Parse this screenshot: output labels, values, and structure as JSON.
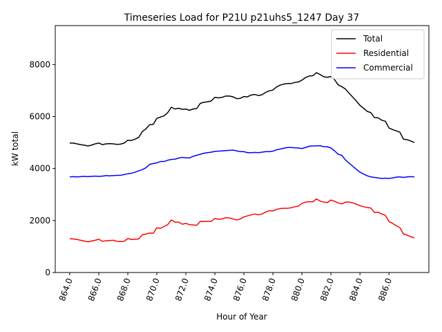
{
  "chart_data": {
    "type": "line",
    "title": "Timeseries Load for P21U p21uhs5_1247  Day 37",
    "xlabel": "Hour of Year",
    "ylabel": "kW total",
    "xlim": [
      863.0,
      888.75
    ],
    "ylim": [
      0,
      9500
    ],
    "x_ticks": [
      864,
      866,
      868,
      870,
      872,
      874,
      876,
      878,
      880,
      882,
      884,
      886
    ],
    "x_tick_labels": [
      "864.0",
      "866.0",
      "868.0",
      "870.0",
      "872.0",
      "874.0",
      "876.0",
      "878.0",
      "880.0",
      "882.0",
      "884.0",
      "886.0"
    ],
    "y_ticks": [
      0,
      2000,
      4000,
      6000,
      8000
    ],
    "y_tick_labels": [
      "0",
      "2000",
      "4000",
      "6000",
      "8000"
    ],
    "legend_position": "top-right",
    "grid": false,
    "series": [
      {
        "name": "Total",
        "color": "#000000",
        "points": [
          [
            864.0,
            4980
          ],
          [
            864.25,
            4980
          ],
          [
            864.5,
            4950
          ],
          [
            864.75,
            4920
          ],
          [
            865.0,
            4900
          ],
          [
            865.25,
            4870
          ],
          [
            865.5,
            4900
          ],
          [
            865.75,
            4950
          ],
          [
            866.0,
            4980
          ],
          [
            866.25,
            4920
          ],
          [
            866.5,
            4950
          ],
          [
            866.75,
            4960
          ],
          [
            867.0,
            4950
          ],
          [
            867.25,
            4930
          ],
          [
            867.5,
            4940
          ],
          [
            867.75,
            4980
          ],
          [
            868.0,
            5090
          ],
          [
            868.25,
            5080
          ],
          [
            868.5,
            5130
          ],
          [
            868.75,
            5200
          ],
          [
            869.0,
            5420
          ],
          [
            869.25,
            5530
          ],
          [
            869.5,
            5680
          ],
          [
            869.75,
            5700
          ],
          [
            870.0,
            5930
          ],
          [
            870.25,
            5980
          ],
          [
            870.5,
            6030
          ],
          [
            870.75,
            6150
          ],
          [
            871.0,
            6360
          ],
          [
            871.25,
            6290
          ],
          [
            871.5,
            6320
          ],
          [
            871.75,
            6280
          ],
          [
            872.0,
            6290
          ],
          [
            872.25,
            6240
          ],
          [
            872.5,
            6290
          ],
          [
            872.75,
            6310
          ],
          [
            873.0,
            6510
          ],
          [
            873.25,
            6550
          ],
          [
            873.5,
            6570
          ],
          [
            873.75,
            6600
          ],
          [
            874.0,
            6740
          ],
          [
            874.25,
            6720
          ],
          [
            874.5,
            6740
          ],
          [
            874.75,
            6790
          ],
          [
            875.0,
            6790
          ],
          [
            875.25,
            6760
          ],
          [
            875.5,
            6690
          ],
          [
            875.75,
            6700
          ],
          [
            876.0,
            6770
          ],
          [
            876.25,
            6760
          ],
          [
            876.5,
            6830
          ],
          [
            876.75,
            6850
          ],
          [
            877.0,
            6810
          ],
          [
            877.25,
            6840
          ],
          [
            877.5,
            6930
          ],
          [
            877.75,
            6990
          ],
          [
            878.0,
            7020
          ],
          [
            878.25,
            7140
          ],
          [
            878.5,
            7210
          ],
          [
            878.75,
            7250
          ],
          [
            879.0,
            7270
          ],
          [
            879.25,
            7270
          ],
          [
            879.5,
            7310
          ],
          [
            879.75,
            7330
          ],
          [
            880.0,
            7400
          ],
          [
            880.25,
            7500
          ],
          [
            880.5,
            7560
          ],
          [
            880.75,
            7570
          ],
          [
            881.0,
            7690
          ],
          [
            881.25,
            7620
          ],
          [
            881.5,
            7530
          ],
          [
            881.75,
            7510
          ],
          [
            882.0,
            7540
          ],
          [
            882.25,
            7420
          ],
          [
            882.5,
            7220
          ],
          [
            882.75,
            7150
          ],
          [
            883.0,
            7060
          ],
          [
            883.25,
            6900
          ],
          [
            883.5,
            6750
          ],
          [
            883.75,
            6600
          ],
          [
            884.0,
            6430
          ],
          [
            884.25,
            6320
          ],
          [
            884.5,
            6200
          ],
          [
            884.75,
            6150
          ],
          [
            885.0,
            5960
          ],
          [
            885.25,
            5950
          ],
          [
            885.5,
            5860
          ],
          [
            885.75,
            5820
          ],
          [
            886.0,
            5560
          ],
          [
            886.25,
            5500
          ],
          [
            886.5,
            5450
          ],
          [
            886.75,
            5400
          ],
          [
            887.0,
            5130
          ],
          [
            887.25,
            5110
          ],
          [
            887.5,
            5060
          ],
          [
            887.75,
            5000
          ]
        ]
      },
      {
        "name": "Residential",
        "color": "#ff0000",
        "points": [
          [
            864.0,
            1300
          ],
          [
            864.25,
            1290
          ],
          [
            864.5,
            1270
          ],
          [
            864.75,
            1240
          ],
          [
            865.0,
            1210
          ],
          [
            865.25,
            1180
          ],
          [
            865.5,
            1210
          ],
          [
            865.75,
            1240
          ],
          [
            866.0,
            1280
          ],
          [
            866.25,
            1200
          ],
          [
            866.5,
            1220
          ],
          [
            866.75,
            1230
          ],
          [
            867.0,
            1240
          ],
          [
            867.25,
            1200
          ],
          [
            867.5,
            1190
          ],
          [
            867.75,
            1200
          ],
          [
            868.0,
            1310
          ],
          [
            868.25,
            1270
          ],
          [
            868.5,
            1280
          ],
          [
            868.75,
            1290
          ],
          [
            869.0,
            1450
          ],
          [
            869.25,
            1480
          ],
          [
            869.5,
            1520
          ],
          [
            869.75,
            1510
          ],
          [
            870.0,
            1720
          ],
          [
            870.25,
            1700
          ],
          [
            870.5,
            1770
          ],
          [
            870.75,
            1840
          ],
          [
            871.0,
            2020
          ],
          [
            871.25,
            1940
          ],
          [
            871.5,
            1940
          ],
          [
            871.75,
            1860
          ],
          [
            872.0,
            1890
          ],
          [
            872.25,
            1840
          ],
          [
            872.5,
            1830
          ],
          [
            872.75,
            1820
          ],
          [
            873.0,
            1970
          ],
          [
            873.25,
            1960
          ],
          [
            873.5,
            1970
          ],
          [
            873.75,
            1970
          ],
          [
            874.0,
            2080
          ],
          [
            874.25,
            2050
          ],
          [
            874.5,
            2060
          ],
          [
            874.75,
            2110
          ],
          [
            875.0,
            2100
          ],
          [
            875.25,
            2060
          ],
          [
            875.5,
            2020
          ],
          [
            875.75,
            2060
          ],
          [
            876.0,
            2140
          ],
          [
            876.25,
            2180
          ],
          [
            876.5,
            2220
          ],
          [
            876.75,
            2250
          ],
          [
            877.0,
            2220
          ],
          [
            877.25,
            2250
          ],
          [
            877.5,
            2330
          ],
          [
            877.75,
            2380
          ],
          [
            878.0,
            2370
          ],
          [
            878.25,
            2430
          ],
          [
            878.5,
            2460
          ],
          [
            878.75,
            2470
          ],
          [
            879.0,
            2470
          ],
          [
            879.25,
            2490
          ],
          [
            879.5,
            2530
          ],
          [
            879.75,
            2550
          ],
          [
            880.0,
            2660
          ],
          [
            880.25,
            2710
          ],
          [
            880.5,
            2720
          ],
          [
            880.75,
            2720
          ],
          [
            881.0,
            2830
          ],
          [
            881.25,
            2750
          ],
          [
            881.5,
            2710
          ],
          [
            881.75,
            2690
          ],
          [
            882.0,
            2790
          ],
          [
            882.25,
            2740
          ],
          [
            882.5,
            2680
          ],
          [
            882.75,
            2640
          ],
          [
            883.0,
            2710
          ],
          [
            883.25,
            2710
          ],
          [
            883.5,
            2680
          ],
          [
            883.75,
            2630
          ],
          [
            884.0,
            2570
          ],
          [
            884.25,
            2530
          ],
          [
            884.5,
            2500
          ],
          [
            884.75,
            2480
          ],
          [
            885.0,
            2310
          ],
          [
            885.25,
            2320
          ],
          [
            885.5,
            2250
          ],
          [
            885.75,
            2200
          ],
          [
            886.0,
            1960
          ],
          [
            886.25,
            1890
          ],
          [
            886.5,
            1800
          ],
          [
            886.75,
            1730
          ],
          [
            887.0,
            1480
          ],
          [
            887.25,
            1440
          ],
          [
            887.5,
            1380
          ],
          [
            887.75,
            1330
          ]
        ]
      },
      {
        "name": "Commercial",
        "color": "#0000ff",
        "points": [
          [
            864.0,
            3680
          ],
          [
            864.25,
            3690
          ],
          [
            864.5,
            3680
          ],
          [
            864.75,
            3690
          ],
          [
            865.0,
            3700
          ],
          [
            865.25,
            3690
          ],
          [
            865.5,
            3700
          ],
          [
            865.75,
            3710
          ],
          [
            866.0,
            3700
          ],
          [
            866.25,
            3710
          ],
          [
            866.5,
            3730
          ],
          [
            866.75,
            3720
          ],
          [
            867.0,
            3730
          ],
          [
            867.25,
            3740
          ],
          [
            867.5,
            3740
          ],
          [
            867.75,
            3770
          ],
          [
            868.0,
            3800
          ],
          [
            868.25,
            3820
          ],
          [
            868.5,
            3860
          ],
          [
            868.75,
            3910
          ],
          [
            869.0,
            3960
          ],
          [
            869.25,
            4030
          ],
          [
            869.5,
            4160
          ],
          [
            869.75,
            4190
          ],
          [
            870.0,
            4220
          ],
          [
            870.25,
            4270
          ],
          [
            870.5,
            4270
          ],
          [
            870.75,
            4320
          ],
          [
            871.0,
            4350
          ],
          [
            871.25,
            4360
          ],
          [
            871.5,
            4400
          ],
          [
            871.75,
            4430
          ],
          [
            872.0,
            4410
          ],
          [
            872.25,
            4410
          ],
          [
            872.5,
            4470
          ],
          [
            872.75,
            4510
          ],
          [
            873.0,
            4550
          ],
          [
            873.25,
            4590
          ],
          [
            873.5,
            4610
          ],
          [
            873.75,
            4630
          ],
          [
            874.0,
            4660
          ],
          [
            874.25,
            4670
          ],
          [
            874.5,
            4680
          ],
          [
            874.75,
            4690
          ],
          [
            875.0,
            4700
          ],
          [
            875.25,
            4710
          ],
          [
            875.5,
            4680
          ],
          [
            875.75,
            4650
          ],
          [
            876.0,
            4650
          ],
          [
            876.25,
            4610
          ],
          [
            876.5,
            4610
          ],
          [
            876.75,
            4620
          ],
          [
            877.0,
            4610
          ],
          [
            877.25,
            4630
          ],
          [
            877.5,
            4650
          ],
          [
            877.75,
            4650
          ],
          [
            878.0,
            4670
          ],
          [
            878.25,
            4720
          ],
          [
            878.5,
            4750
          ],
          [
            878.75,
            4780
          ],
          [
            879.0,
            4810
          ],
          [
            879.25,
            4810
          ],
          [
            879.5,
            4800
          ],
          [
            879.75,
            4790
          ],
          [
            880.0,
            4770
          ],
          [
            880.25,
            4810
          ],
          [
            880.5,
            4860
          ],
          [
            880.75,
            4870
          ],
          [
            881.0,
            4870
          ],
          [
            881.25,
            4880
          ],
          [
            881.5,
            4840
          ],
          [
            881.75,
            4840
          ],
          [
            882.0,
            4790
          ],
          [
            882.25,
            4680
          ],
          [
            882.5,
            4550
          ],
          [
            882.75,
            4510
          ],
          [
            883.0,
            4330
          ],
          [
            883.25,
            4210
          ],
          [
            883.5,
            4090
          ],
          [
            883.75,
            3970
          ],
          [
            884.0,
            3860
          ],
          [
            884.25,
            3790
          ],
          [
            884.5,
            3720
          ],
          [
            884.75,
            3680
          ],
          [
            885.0,
            3660
          ],
          [
            885.25,
            3640
          ],
          [
            885.5,
            3620
          ],
          [
            885.75,
            3630
          ],
          [
            886.0,
            3620
          ],
          [
            886.25,
            3640
          ],
          [
            886.5,
            3670
          ],
          [
            886.75,
            3680
          ],
          [
            887.0,
            3660
          ],
          [
            887.25,
            3680
          ],
          [
            887.5,
            3690
          ],
          [
            887.75,
            3680
          ]
        ]
      }
    ]
  }
}
